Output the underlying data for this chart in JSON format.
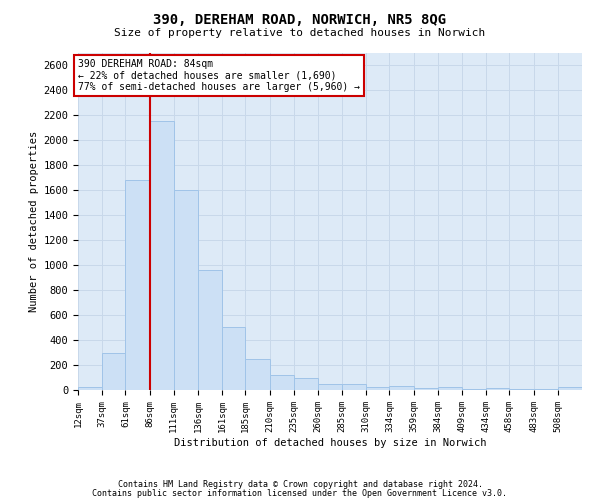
{
  "title_line1": "390, DEREHAM ROAD, NORWICH, NR5 8QG",
  "title_line2": "Size of property relative to detached houses in Norwich",
  "xlabel": "Distribution of detached houses by size in Norwich",
  "ylabel": "Number of detached properties",
  "footnote1": "Contains HM Land Registry data © Crown copyright and database right 2024.",
  "footnote2": "Contains public sector information licensed under the Open Government Licence v3.0.",
  "annotation_line1": "390 DEREHAM ROAD: 84sqm",
  "annotation_line2": "← 22% of detached houses are smaller (1,690)",
  "annotation_line3": "77% of semi-detached houses are larger (5,960) →",
  "bar_color": "#cce0f5",
  "bar_edge_color": "#a0c4e8",
  "vline_color": "#cc0000",
  "categories": [
    "12sqm",
    "37sqm",
    "61sqm",
    "86sqm",
    "111sqm",
    "136sqm",
    "161sqm",
    "185sqm",
    "210sqm",
    "235sqm",
    "260sqm",
    "285sqm",
    "310sqm",
    "334sqm",
    "359sqm",
    "384sqm",
    "409sqm",
    "434sqm",
    "458sqm",
    "483sqm",
    "508sqm"
  ],
  "bin_edges": [
    12,
    37,
    61,
    86,
    111,
    136,
    161,
    185,
    210,
    235,
    260,
    285,
    310,
    334,
    359,
    384,
    409,
    434,
    458,
    483,
    508,
    533
  ],
  "values": [
    25,
    300,
    1680,
    2150,
    1600,
    960,
    505,
    250,
    120,
    100,
    50,
    50,
    25,
    35,
    20,
    25,
    5,
    20,
    5,
    5,
    25
  ],
  "ylim": [
    0,
    2700
  ],
  "yticks": [
    0,
    200,
    400,
    600,
    800,
    1000,
    1200,
    1400,
    1600,
    1800,
    2000,
    2200,
    2400,
    2600
  ],
  "grid_color": "#c8d8ea",
  "background_color": "#ddeaf7"
}
